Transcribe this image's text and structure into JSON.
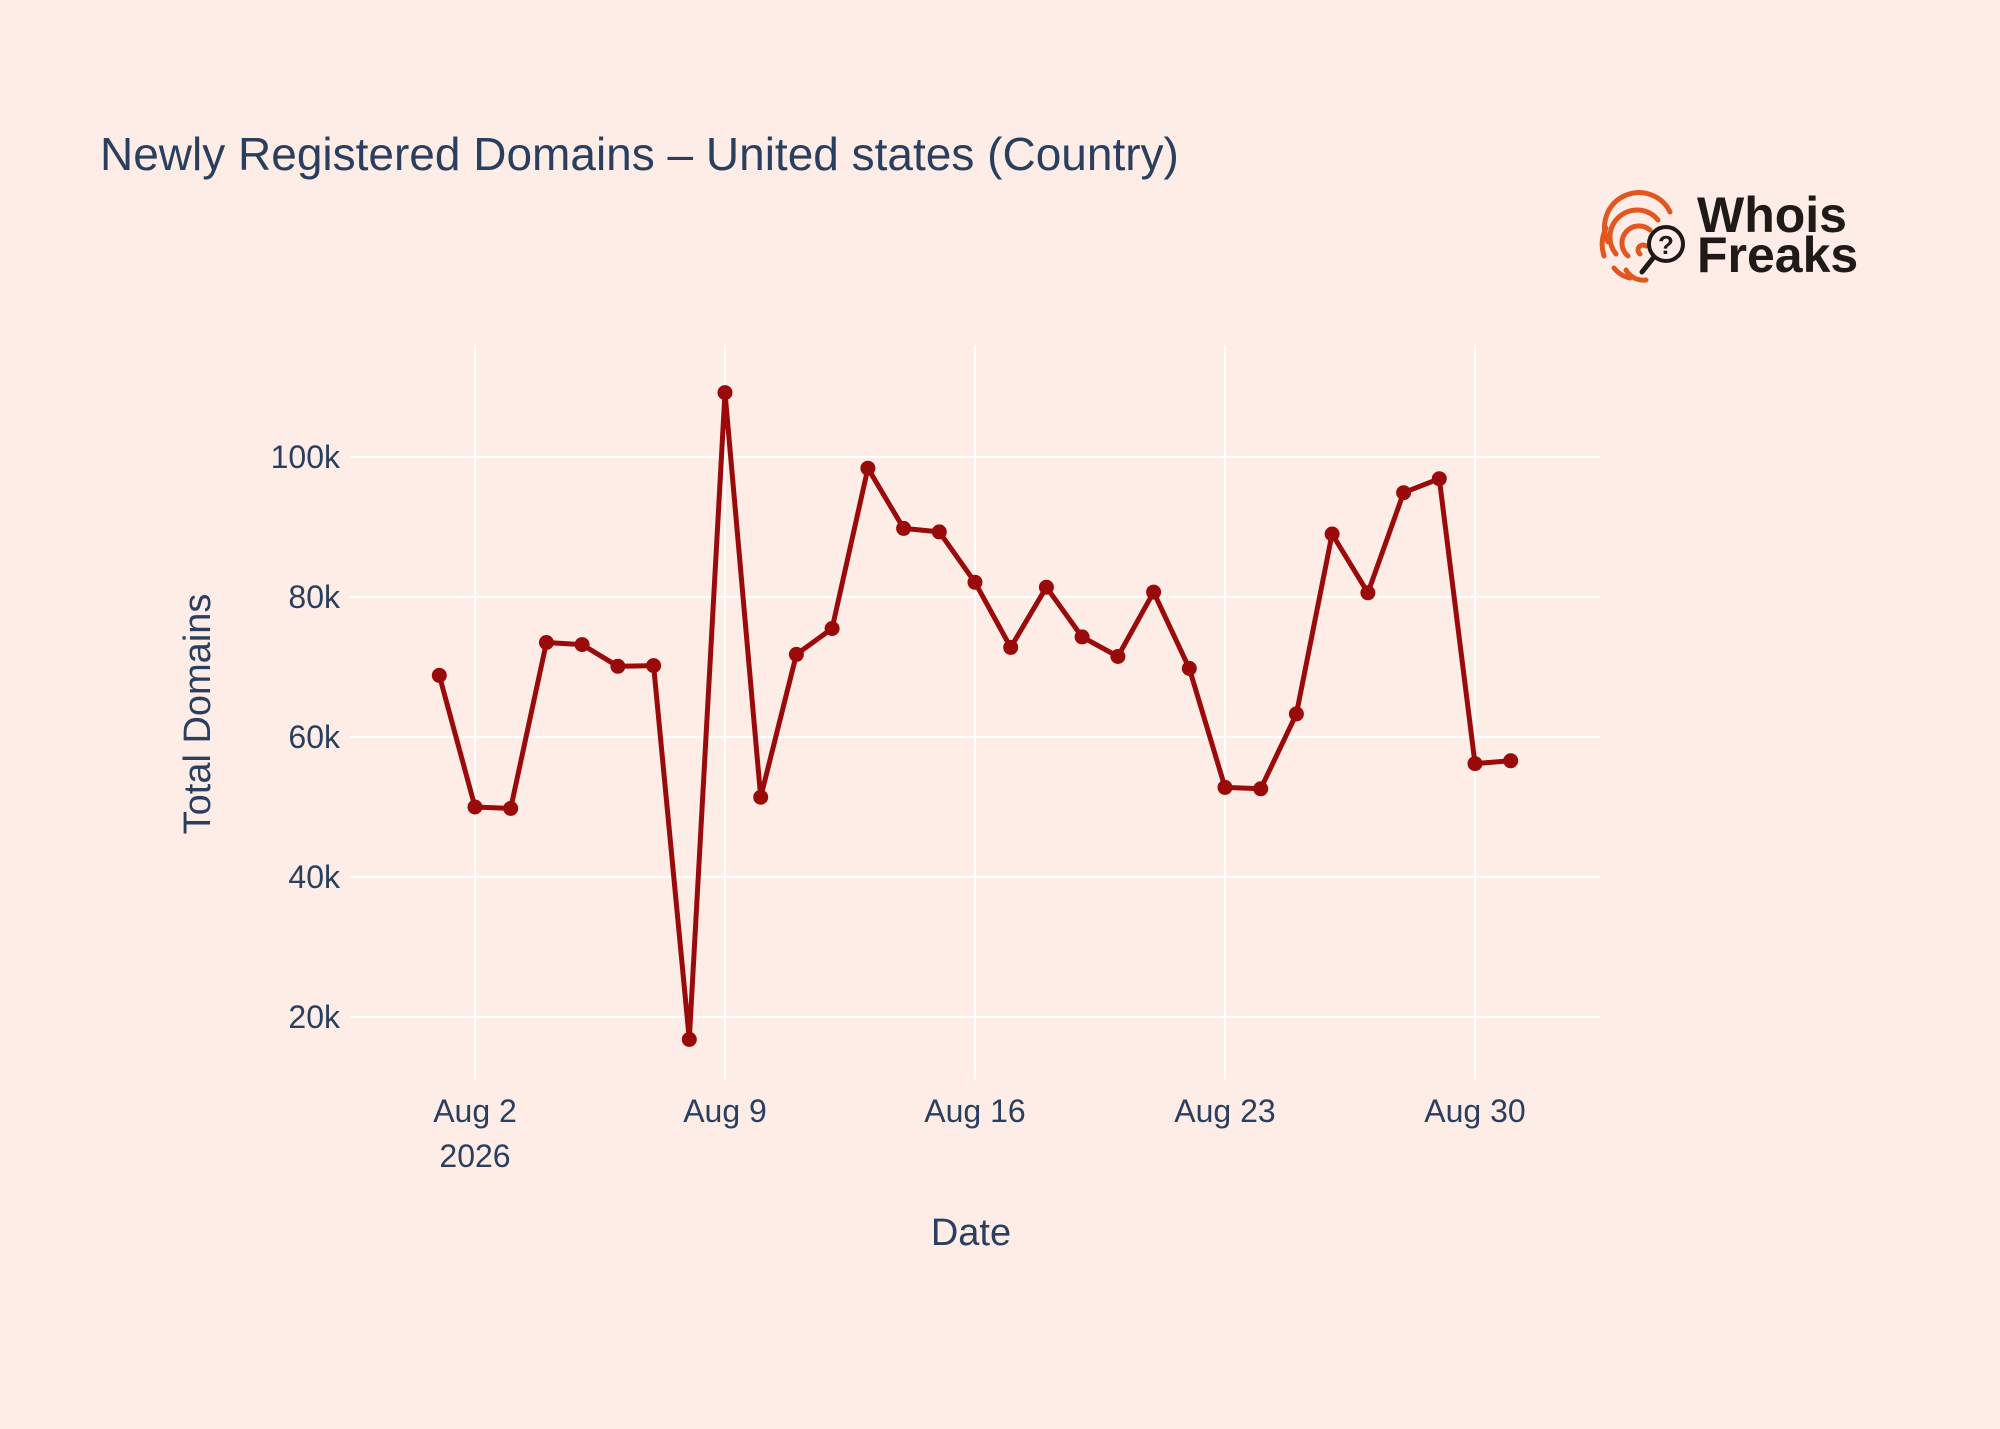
{
  "logo": {
    "line1": "Whois",
    "line2": "Freaks",
    "icon": "fingerprint-magnifier-icon",
    "colors": {
      "accent": "#e2561f",
      "text": "#1f1a17"
    }
  },
  "colors": {
    "background": "#fdede6",
    "line": "#9b0a0a",
    "grid": "#ffffff",
    "text": "#2a3f5f"
  },
  "chart_data": {
    "type": "line",
    "title": "Newly Registered Domains – United states (Country)",
    "xlabel": "Date",
    "ylabel": "Total Domains",
    "grid": true,
    "legend": "none",
    "xlim": [
      "2026-07-29T12:00",
      "2026-09-02T12:00"
    ],
    "ylim": [
      11000,
      116000
    ],
    "y_ticks": [
      {
        "value": 20000,
        "label": "20k"
      },
      {
        "value": 40000,
        "label": "40k"
      },
      {
        "value": 60000,
        "label": "60k"
      },
      {
        "value": 80000,
        "label": "80k"
      },
      {
        "value": 100000,
        "label": "100k"
      }
    ],
    "x_ticks": [
      {
        "value": "2026-08-02",
        "label": "Aug 2",
        "sublabel": "2026"
      },
      {
        "value": "2026-08-09",
        "label": "Aug 9"
      },
      {
        "value": "2026-08-16",
        "label": "Aug 16"
      },
      {
        "value": "2026-08-23",
        "label": "Aug 23"
      },
      {
        "value": "2026-08-30",
        "label": "Aug 30"
      }
    ],
    "series": [
      {
        "x": [
          "2026-08-01",
          "2026-08-02",
          "2026-08-03",
          "2026-08-04",
          "2026-08-05",
          "2026-08-06",
          "2026-08-07",
          "2026-08-08",
          "2026-08-09",
          "2026-08-10",
          "2026-08-11",
          "2026-08-12",
          "2026-08-13",
          "2026-08-14",
          "2026-08-15",
          "2026-08-16",
          "2026-08-17",
          "2026-08-18",
          "2026-08-19",
          "2026-08-20",
          "2026-08-21",
          "2026-08-22",
          "2026-08-23",
          "2026-08-24",
          "2026-08-25",
          "2026-08-26",
          "2026-08-27",
          "2026-08-28",
          "2026-08-29",
          "2026-08-30",
          "2026-08-31"
        ],
        "y": [
          68800,
          50000,
          49800,
          73500,
          73200,
          70100,
          70200,
          16800,
          109200,
          51400,
          71800,
          75500,
          98400,
          89800,
          89300,
          82100,
          72800,
          81400,
          74300,
          71500,
          80700,
          69800,
          52800,
          52600,
          63300,
          89000,
          80600,
          94900,
          96900,
          56200,
          56600
        ]
      }
    ]
  }
}
